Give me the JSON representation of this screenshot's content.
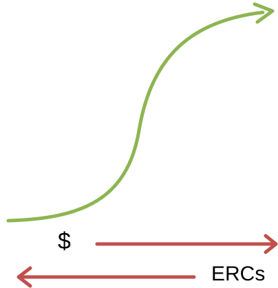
{
  "colors": {
    "s_curve": "#8db552",
    "flow_arrows": "#c0504d",
    "text": "#000000",
    "background": "#ffffff"
  },
  "labels": {
    "money": "$",
    "ercs": "ERCs"
  }
}
